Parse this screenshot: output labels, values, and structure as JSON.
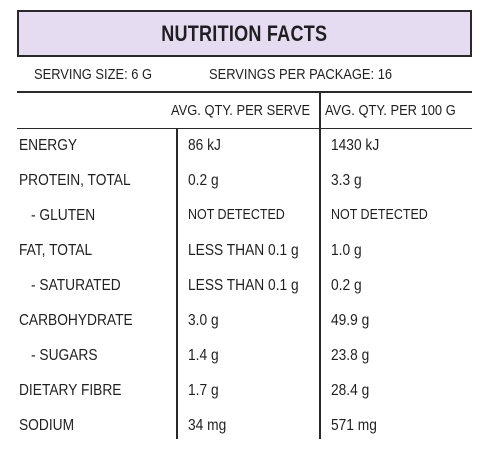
{
  "title": "NUTRITION FACTS",
  "serving_size": "SERVING SIZE: 6 G",
  "servings_per_package": "SERVINGS PER PACKAGE: 16",
  "columns": {
    "per_serve": "AVG. QTY. PER SERVE",
    "per_100g": "AVG. QTY. PER 100 G"
  },
  "rows": [
    {
      "label": "ENERGY",
      "per_serve": "86 kJ",
      "per_100g": "1430 kJ"
    },
    {
      "label": "PROTEIN, TOTAL",
      "per_serve": "0.2 g",
      "per_100g": "3.3 g"
    },
    {
      "label": "- GLUTEN",
      "per_serve": "NOT DETECTED",
      "per_100g": "NOT DETECTED"
    },
    {
      "label": "FAT, TOTAL",
      "per_serve": "LESS THAN 0.1 g",
      "per_100g": "1.0 g"
    },
    {
      "label": "- SATURATED",
      "per_serve": "LESS THAN 0.1 g",
      "per_100g": "0.2 g"
    },
    {
      "label": "CARBOHYDRATE",
      "per_serve": "3.0 g",
      "per_100g": "49.9 g"
    },
    {
      "label": "- SUGARS",
      "per_serve": "1.4 g",
      "per_100g": "23.8 g"
    },
    {
      "label": "DIETARY FIBRE",
      "per_serve": "1.7 g",
      "per_100g": "28.4 g"
    },
    {
      "label": "SODIUM",
      "per_serve": "34 mg",
      "per_100g": "571 mg"
    }
  ],
  "colors": {
    "title_background": "#e6dcf1",
    "rule": "#2a2a2a",
    "text": "#1f1f1f"
  }
}
